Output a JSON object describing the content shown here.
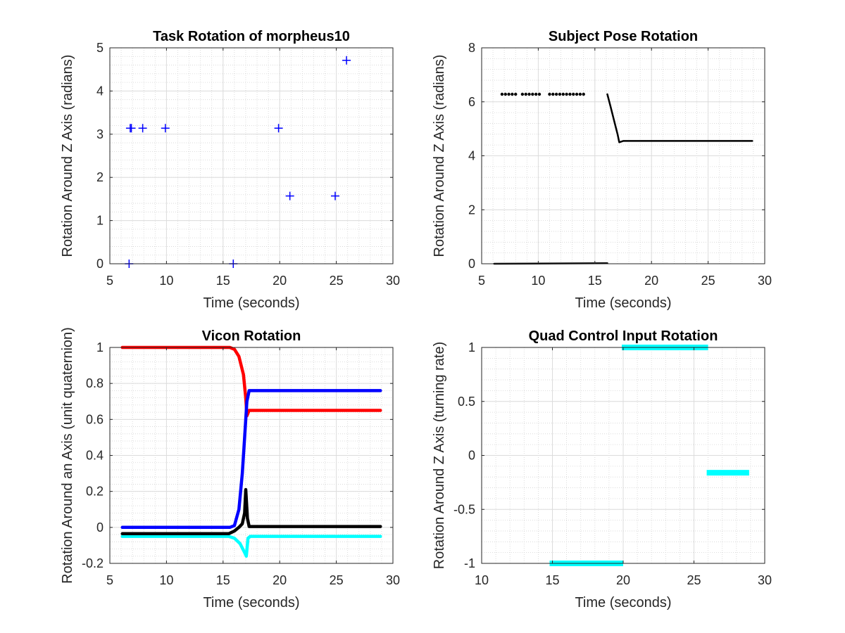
{
  "chart_data": [
    {
      "type": "scatter",
      "title": "Task Rotation of morpheus10",
      "xlabel": "Time (seconds)",
      "ylabel": "Rotation Around Z Axis (radians)",
      "xlim": [
        5,
        30
      ],
      "ylim": [
        0,
        5
      ],
      "xticks": [
        5,
        10,
        15,
        20,
        25,
        30
      ],
      "yticks": [
        0,
        1,
        2,
        3,
        4,
        5
      ],
      "grid": "on",
      "minor_grid": "on",
      "series": [
        {
          "color": "#0000ff",
          "marker": "plus",
          "points": [
            [
              6.7,
              0
            ],
            [
              6.8,
              3.14
            ],
            [
              6.9,
              3.14
            ],
            [
              7.9,
              3.14
            ],
            [
              9.9,
              3.14
            ],
            [
              15.9,
              0
            ],
            [
              19.9,
              3.14
            ],
            [
              20.9,
              1.57
            ],
            [
              24.9,
              1.57
            ],
            [
              25.9,
              4.71
            ]
          ]
        }
      ]
    },
    {
      "type": "line",
      "title": "Subject Pose Rotation",
      "xlabel": "Time (seconds)",
      "ylabel": "Rotation Around Z Axis (radians)",
      "xlim": [
        5,
        30
      ],
      "ylim": [
        0,
        8
      ],
      "xticks": [
        5,
        10,
        15,
        20,
        25,
        30
      ],
      "yticks": [
        0,
        2,
        4,
        6,
        8
      ],
      "grid": "on",
      "minor_grid": "on",
      "series": [
        {
          "color": "#000000",
          "style": "dots",
          "points": [
            [
              6.8,
              6.28
            ],
            [
              7.1,
              6.28
            ],
            [
              7.4,
              6.28
            ],
            [
              7.7,
              6.28
            ],
            [
              8.0,
              6.28
            ],
            [
              8.6,
              6.28
            ],
            [
              8.9,
              6.28
            ],
            [
              9.2,
              6.28
            ],
            [
              9.5,
              6.28
            ],
            [
              9.8,
              6.28
            ],
            [
              10.1,
              6.28
            ],
            [
              11.0,
              6.28
            ],
            [
              11.3,
              6.28
            ],
            [
              11.6,
              6.28
            ],
            [
              11.9,
              6.28
            ],
            [
              12.2,
              6.28
            ],
            [
              12.5,
              6.28
            ],
            [
              12.8,
              6.28
            ],
            [
              13.1,
              6.28
            ],
            [
              13.4,
              6.28
            ],
            [
              13.7,
              6.28
            ],
            [
              14.0,
              6.28
            ]
          ]
        },
        {
          "color": "#000000",
          "style": "line",
          "points": [
            [
              6.1,
              0
            ],
            [
              16.1,
              0.02
            ]
          ]
        },
        {
          "color": "#000000",
          "style": "line",
          "points": [
            [
              16.1,
              6.28
            ],
            [
              16.4,
              5.8
            ],
            [
              16.7,
              5.3
            ],
            [
              17.0,
              4.8
            ],
            [
              17.15,
              4.5
            ],
            [
              17.5,
              4.55
            ],
            [
              20,
              4.55
            ],
            [
              25,
              4.55
            ],
            [
              28.9,
              4.55
            ]
          ]
        }
      ]
    },
    {
      "type": "line",
      "title": "Vicon Rotation",
      "xlabel": "Time (seconds)",
      "ylabel": "Rotation Around an Axis (unit quaternion)",
      "xlim": [
        5,
        30
      ],
      "ylim": [
        -0.2,
        1
      ],
      "xticks": [
        5,
        10,
        15,
        20,
        25,
        30
      ],
      "yticks": [
        -0.2,
        0,
        0.2,
        0.4,
        0.6,
        0.8,
        1
      ],
      "grid": "on",
      "minor_grid": "on",
      "series": [
        {
          "color": "#ff0000",
          "points": [
            [
              6.1,
              1.0
            ],
            [
              15.6,
              1.0
            ],
            [
              16.0,
              0.99
            ],
            [
              16.4,
              0.95
            ],
            [
              16.8,
              0.85
            ],
            [
              17.0,
              0.72
            ],
            [
              17.1,
              0.62
            ],
            [
              17.3,
              0.65
            ],
            [
              20,
              0.65
            ],
            [
              25,
              0.65
            ],
            [
              28.9,
              0.65
            ]
          ]
        },
        {
          "color": "#0000ff",
          "points": [
            [
              6.1,
              0.0
            ],
            [
              15.6,
              0.0
            ],
            [
              16.0,
              0.01
            ],
            [
              16.4,
              0.1
            ],
            [
              16.7,
              0.3
            ],
            [
              16.9,
              0.5
            ],
            [
              17.1,
              0.7
            ],
            [
              17.3,
              0.76
            ],
            [
              20,
              0.76
            ],
            [
              25,
              0.76
            ],
            [
              28.9,
              0.76
            ]
          ]
        },
        {
          "color": "#00ffff",
          "points": [
            [
              6.1,
              -0.05
            ],
            [
              15.5,
              -0.05
            ],
            [
              16.0,
              -0.06
            ],
            [
              16.5,
              -0.09
            ],
            [
              16.9,
              -0.14
            ],
            [
              17.05,
              -0.16
            ],
            [
              17.2,
              -0.06
            ],
            [
              17.4,
              -0.05
            ],
            [
              20,
              -0.05
            ],
            [
              25,
              -0.05
            ],
            [
              28.9,
              -0.05
            ]
          ]
        },
        {
          "color": "#000000",
          "points": [
            [
              6.1,
              -0.035
            ],
            [
              15.5,
              -0.035
            ],
            [
              16.0,
              -0.02
            ],
            [
              16.4,
              0.0
            ],
            [
              16.7,
              0.02
            ],
            [
              16.9,
              0.08
            ],
            [
              17.0,
              0.21
            ],
            [
              17.15,
              0.05
            ],
            [
              17.3,
              0.005
            ],
            [
              20,
              0.005
            ],
            [
              25,
              0.005
            ],
            [
              28.9,
              0.005
            ]
          ]
        }
      ]
    },
    {
      "type": "line",
      "title": "Quad Control Input Rotation",
      "xlabel": "Time (seconds)",
      "ylabel": "Rotation Around Z Axis (turning rate)",
      "xlim": [
        10,
        30
      ],
      "ylim": [
        -1,
        1
      ],
      "xticks": [
        10,
        15,
        20,
        25,
        30
      ],
      "yticks": [
        -1,
        -0.5,
        0,
        0.5,
        1
      ],
      "grid": "on",
      "minor_grid": "on",
      "series": [
        {
          "color": "#00ffff",
          "points": [
            [
              14.8,
              -1
            ],
            [
              20.0,
              -1
            ]
          ]
        },
        {
          "color": "#00ffff",
          "points": [
            [
              19.9,
              1
            ],
            [
              26.0,
              1
            ]
          ]
        },
        {
          "color": "#00ffff",
          "points": [
            [
              25.9,
              -0.16
            ],
            [
              28.9,
              -0.16
            ]
          ]
        }
      ]
    }
  ]
}
